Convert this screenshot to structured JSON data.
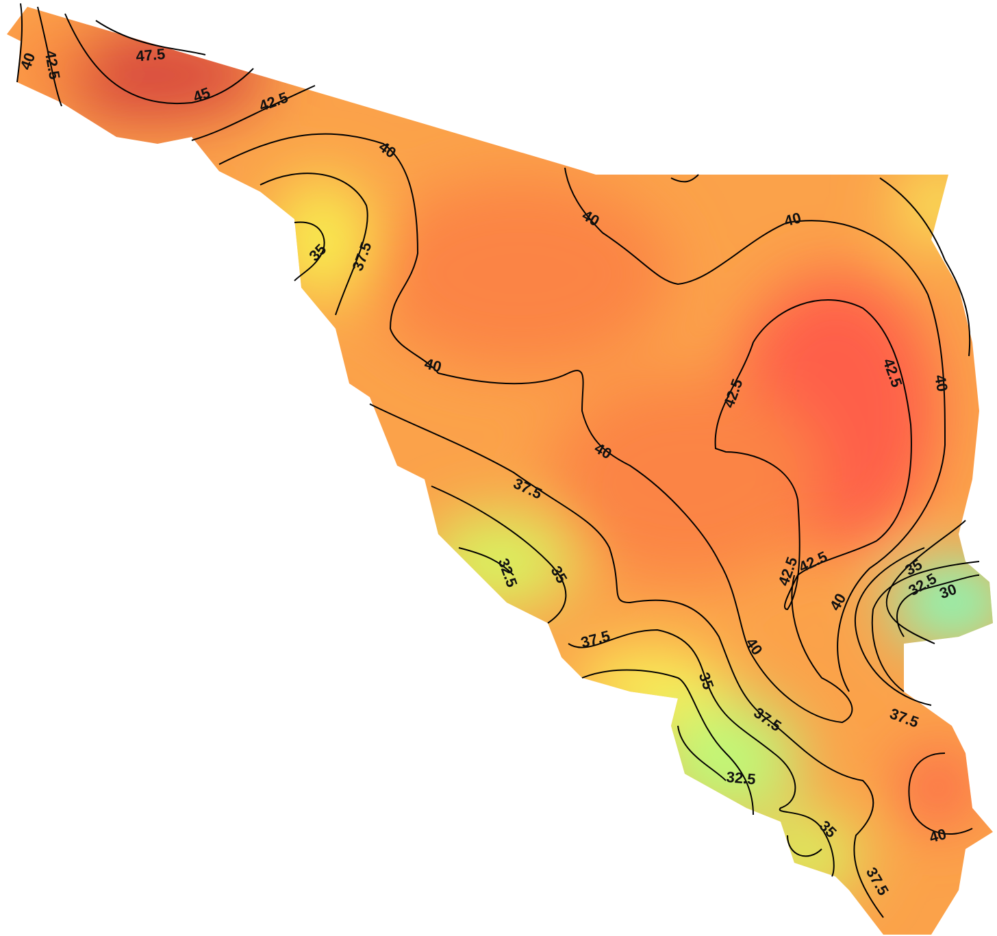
{
  "contour_labels": [
    47.5,
    45,
    42.5,
    40,
    40,
    42.5,
    35,
    37.5,
    40,
    40,
    40,
    42.5,
    42.5,
    40,
    40,
    37.5,
    32.5,
    35,
    42.5,
    42.5,
    40,
    35,
    32.5,
    30,
    37.5,
    40,
    35,
    37.5,
    37.5,
    32.5,
    35,
    40,
    37.5
  ]
}
